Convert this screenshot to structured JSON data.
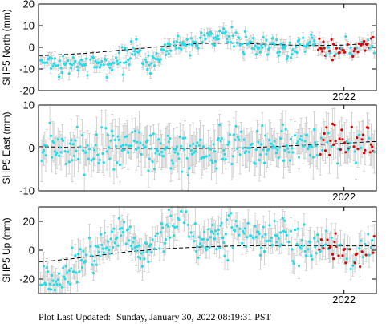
{
  "footer": {
    "label": "Plot Last Updated:",
    "value": "Sunday, January 30, 2022 08:19:31 PST"
  },
  "colors": {
    "point": "#22dde8",
    "recent_point": "#e00000",
    "error_bar": "#c8c8c8",
    "trend": "#000000",
    "frame": "#000000"
  },
  "chart_data": [
    {
      "type": "scatter",
      "ylabel": "SHP5 North (mm)",
      "ylim": [
        -20,
        20
      ],
      "yticks": [
        -20,
        -10,
        0,
        10,
        20
      ],
      "x_range": [
        2017.75,
        2022.45
      ],
      "year_marker": "2022",
      "year_marker_x": 2022.0,
      "series": [
        {
          "role": "observations",
          "points_per_year": 70,
          "noise_mm": 2.3,
          "error_bar_mm": 2.2,
          "profile_x": [
            2017.8,
            2018.0,
            2018.3,
            2018.5,
            2018.7,
            2018.9,
            2019.1,
            2019.3,
            2019.5,
            2019.7,
            2019.9,
            2020.1,
            2020.3,
            2020.5,
            2020.8,
            2021.0,
            2021.2,
            2021.4,
            2021.6,
            2021.8,
            2022.0,
            2022.2,
            2022.4
          ],
          "profile_y": [
            -6,
            -8,
            -7,
            -6,
            -9,
            -5,
            -2,
            -8,
            -1,
            2,
            1,
            4,
            6,
            4,
            -1,
            3,
            -2,
            1,
            3,
            -1,
            0,
            0,
            3
          ]
        },
        {
          "role": "recent",
          "x_from": 2021.62,
          "offset_mm": -1.5,
          "point_count": 38
        },
        {
          "role": "trend",
          "x": [
            2017.8,
            2018.4,
            2019.0,
            2019.5,
            2020.0,
            2020.5,
            2021.0,
            2021.5,
            2022.0,
            2022.4
          ],
          "y": [
            -3.8,
            -2.8,
            -1.0,
            0.5,
            1.8,
            2.0,
            1.3,
            0.8,
            1.0,
            2.0
          ]
        }
      ]
    },
    {
      "type": "scatter",
      "ylabel": "SHP5 East (mm)",
      "ylim": [
        -10,
        10
      ],
      "yticks": [
        -10,
        0,
        10
      ],
      "x_range": [
        2017.75,
        2022.45
      ],
      "year_marker": "2022",
      "year_marker_x": 2022.0,
      "series": [
        {
          "role": "observations",
          "points_per_year": 70,
          "noise_mm": 2.4,
          "error_bar_mm": 3.6,
          "profile_x": [
            2017.8,
            2018.1,
            2018.4,
            2018.7,
            2019.0,
            2019.3,
            2019.6,
            2019.9,
            2020.2,
            2020.5,
            2020.8,
            2021.1,
            2021.4,
            2021.7,
            2022.0,
            2022.4
          ],
          "profile_y": [
            -1,
            1,
            -1,
            0,
            0.5,
            1,
            -1,
            0,
            -1,
            1,
            0,
            1,
            0,
            1,
            0,
            1
          ]
        },
        {
          "role": "recent",
          "x_from": 2021.62,
          "offset_mm": 0.3,
          "point_count": 34
        },
        {
          "role": "trend",
          "x": [
            2017.8,
            2018.5,
            2019.0,
            2019.5,
            2020.0,
            2020.5,
            2021.0,
            2021.5,
            2022.0,
            2022.4
          ],
          "y": [
            0.3,
            0.0,
            -0.1,
            -0.1,
            -0.1,
            0.0,
            0.3,
            0.7,
            1.1,
            1.5
          ]
        }
      ]
    },
    {
      "type": "scatter",
      "ylabel": "SHP5 Up (mm)",
      "ylim": [
        -30,
        30
      ],
      "yticks": [
        -20,
        0,
        20
      ],
      "x_range": [
        2017.75,
        2022.45
      ],
      "year_marker": "2022",
      "year_marker_x": 2022.0,
      "series": [
        {
          "role": "observations",
          "points_per_year": 70,
          "noise_mm": 6.5,
          "error_bar_mm": 7.5,
          "profile_x": [
            2017.8,
            2018.0,
            2018.2,
            2018.5,
            2018.7,
            2019.0,
            2019.2,
            2019.5,
            2019.7,
            2020.0,
            2020.3,
            2020.6,
            2020.9,
            2021.2,
            2021.5,
            2021.8,
            2022.1,
            2022.4
          ],
          "profile_y": [
            -20,
            -22,
            -12,
            -5,
            5,
            10,
            -5,
            15,
            25,
            5,
            12,
            15,
            8,
            12,
            2,
            5,
            -2,
            5
          ]
        },
        {
          "role": "recent",
          "x_from": 2021.62,
          "offset_mm": -4.0,
          "point_count": 36
        },
        {
          "role": "trend",
          "x": [
            2017.8,
            2018.2,
            2018.6,
            2019.0,
            2019.5,
            2020.0,
            2020.5,
            2021.0,
            2021.5,
            2022.0,
            2022.4
          ],
          "y": [
            -8.0,
            -6.0,
            -3.5,
            -1.0,
            1.0,
            2.2,
            3.0,
            3.2,
            3.2,
            3.0,
            3.0
          ]
        }
      ]
    }
  ]
}
